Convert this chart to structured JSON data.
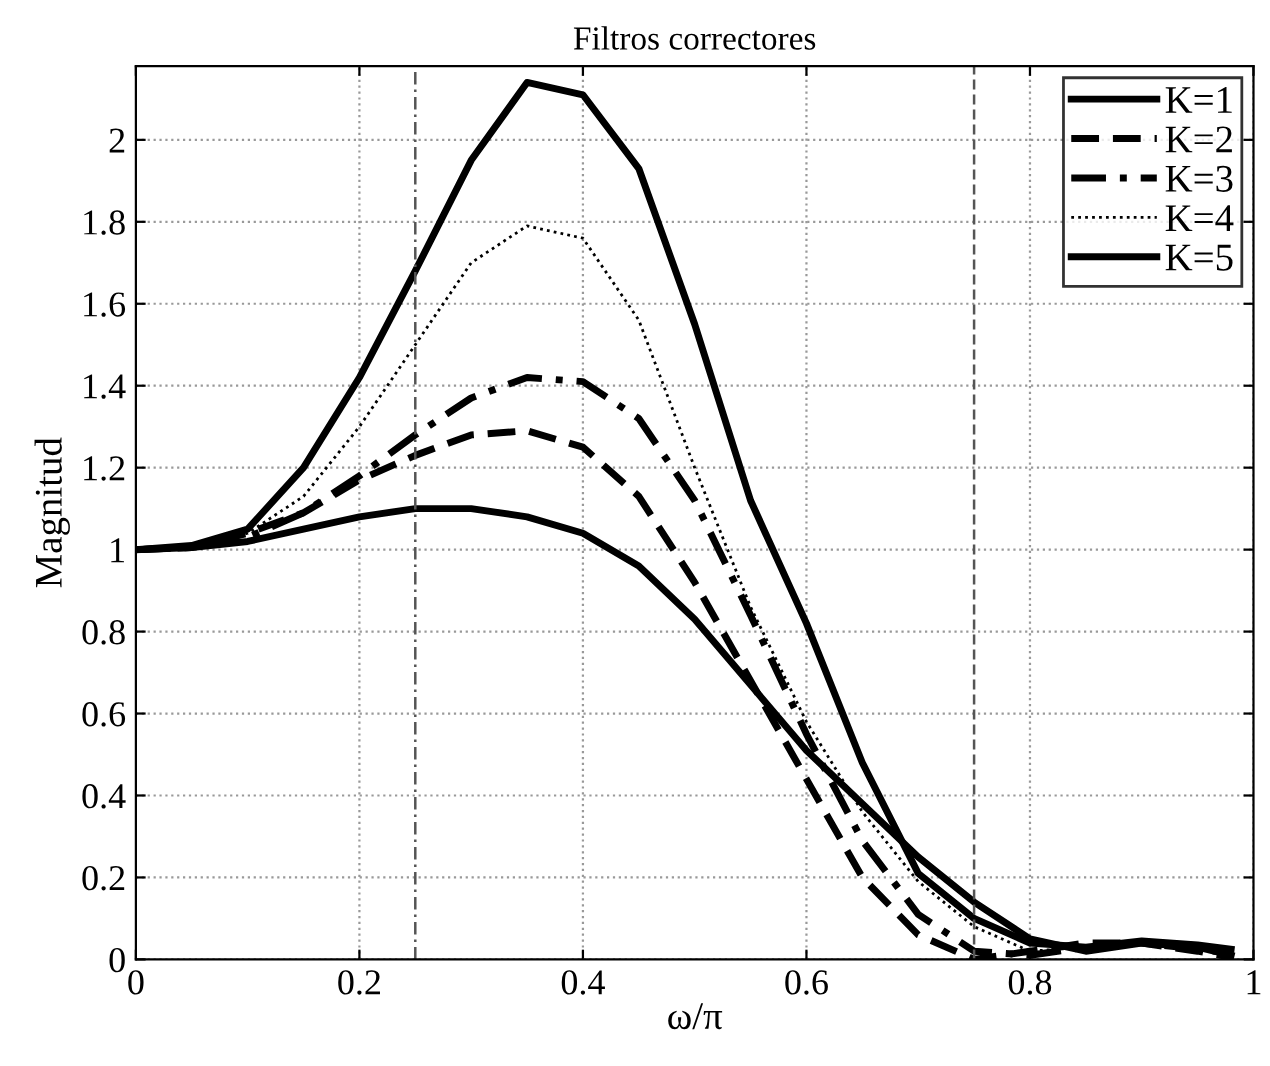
{
  "chart_data": {
    "type": "line",
    "title": "Filtros correctores",
    "xlabel": "ω/π",
    "ylabel": "Magnitud",
    "x": [
      0,
      0.05,
      0.1,
      0.15,
      0.2,
      0.25,
      0.3,
      0.35,
      0.4,
      0.45,
      0.5,
      0.55,
      0.6,
      0.65,
      0.7,
      0.75,
      0.8,
      0.85,
      0.9,
      0.95,
      0.98
    ],
    "series": [
      {
        "name": "K=1",
        "color": "#000000",
        "line_style": "solid",
        "values": [
          1,
          1.005,
          1.02,
          1.05,
          1.08,
          1.1,
          1.1,
          1.08,
          1.04,
          0.96,
          0.83,
          0.67,
          0.51,
          0.38,
          0.25,
          0.14,
          0.05,
          0.02,
          0.04,
          0.03,
          0.01
        ]
      },
      {
        "name": "K=2",
        "color": "#000000",
        "line_style": "dashed",
        "values": [
          1,
          1.005,
          1.04,
          1.09,
          1.17,
          1.23,
          1.28,
          1.29,
          1.25,
          1.13,
          0.92,
          0.68,
          0.44,
          0.2,
          0.06,
          0,
          0.02,
          0.04,
          0.04,
          0.02,
          0.005
        ]
      },
      {
        "name": "K=3",
        "color": "#000000",
        "line_style": "dashdot",
        "values": [
          1,
          1.005,
          1.03,
          1.09,
          1.18,
          1.28,
          1.37,
          1.42,
          1.41,
          1.32,
          1.12,
          0.84,
          0.55,
          0.29,
          0.11,
          0.02,
          0.01,
          0.03,
          0.04,
          0.025,
          0.015
        ]
      },
      {
        "name": "K=4",
        "color": "#000000",
        "line_style": "dotted",
        "values": [
          1,
          1.005,
          1.04,
          1.13,
          1.3,
          1.5,
          1.7,
          1.79,
          1.76,
          1.56,
          1.2,
          0.86,
          0.58,
          0.36,
          0.19,
          0.08,
          0.02,
          0.03,
          0.04,
          0.03,
          0.02
        ]
      },
      {
        "name": "K=5",
        "color": "#000000",
        "line_style": "solid",
        "values": [
          1,
          1.01,
          1.05,
          1.2,
          1.42,
          1.68,
          1.95,
          2.14,
          2.11,
          1.93,
          1.55,
          1.12,
          0.82,
          0.48,
          0.21,
          0.1,
          0.04,
          0.03,
          0.045,
          0.035,
          0.025
        ]
      }
    ],
    "xlim": [
      0,
      1
    ],
    "ylim": [
      0,
      2.18
    ],
    "xticks": [
      0,
      0.2,
      0.4,
      0.6,
      0.8,
      1
    ],
    "yticks": [
      0,
      0.2,
      0.4,
      0.6,
      0.8,
      1,
      1.2,
      1.4,
      1.6,
      1.8,
      2
    ],
    "ref_lines": [
      {
        "axis": "x",
        "value": 0.25,
        "color": "#555555",
        "line_style": "dashdot"
      },
      {
        "axis": "x",
        "value": 0.75,
        "color": "#555555",
        "line_style": "dashed"
      }
    ],
    "grid": true,
    "legend": "top right",
    "marker": "none"
  }
}
